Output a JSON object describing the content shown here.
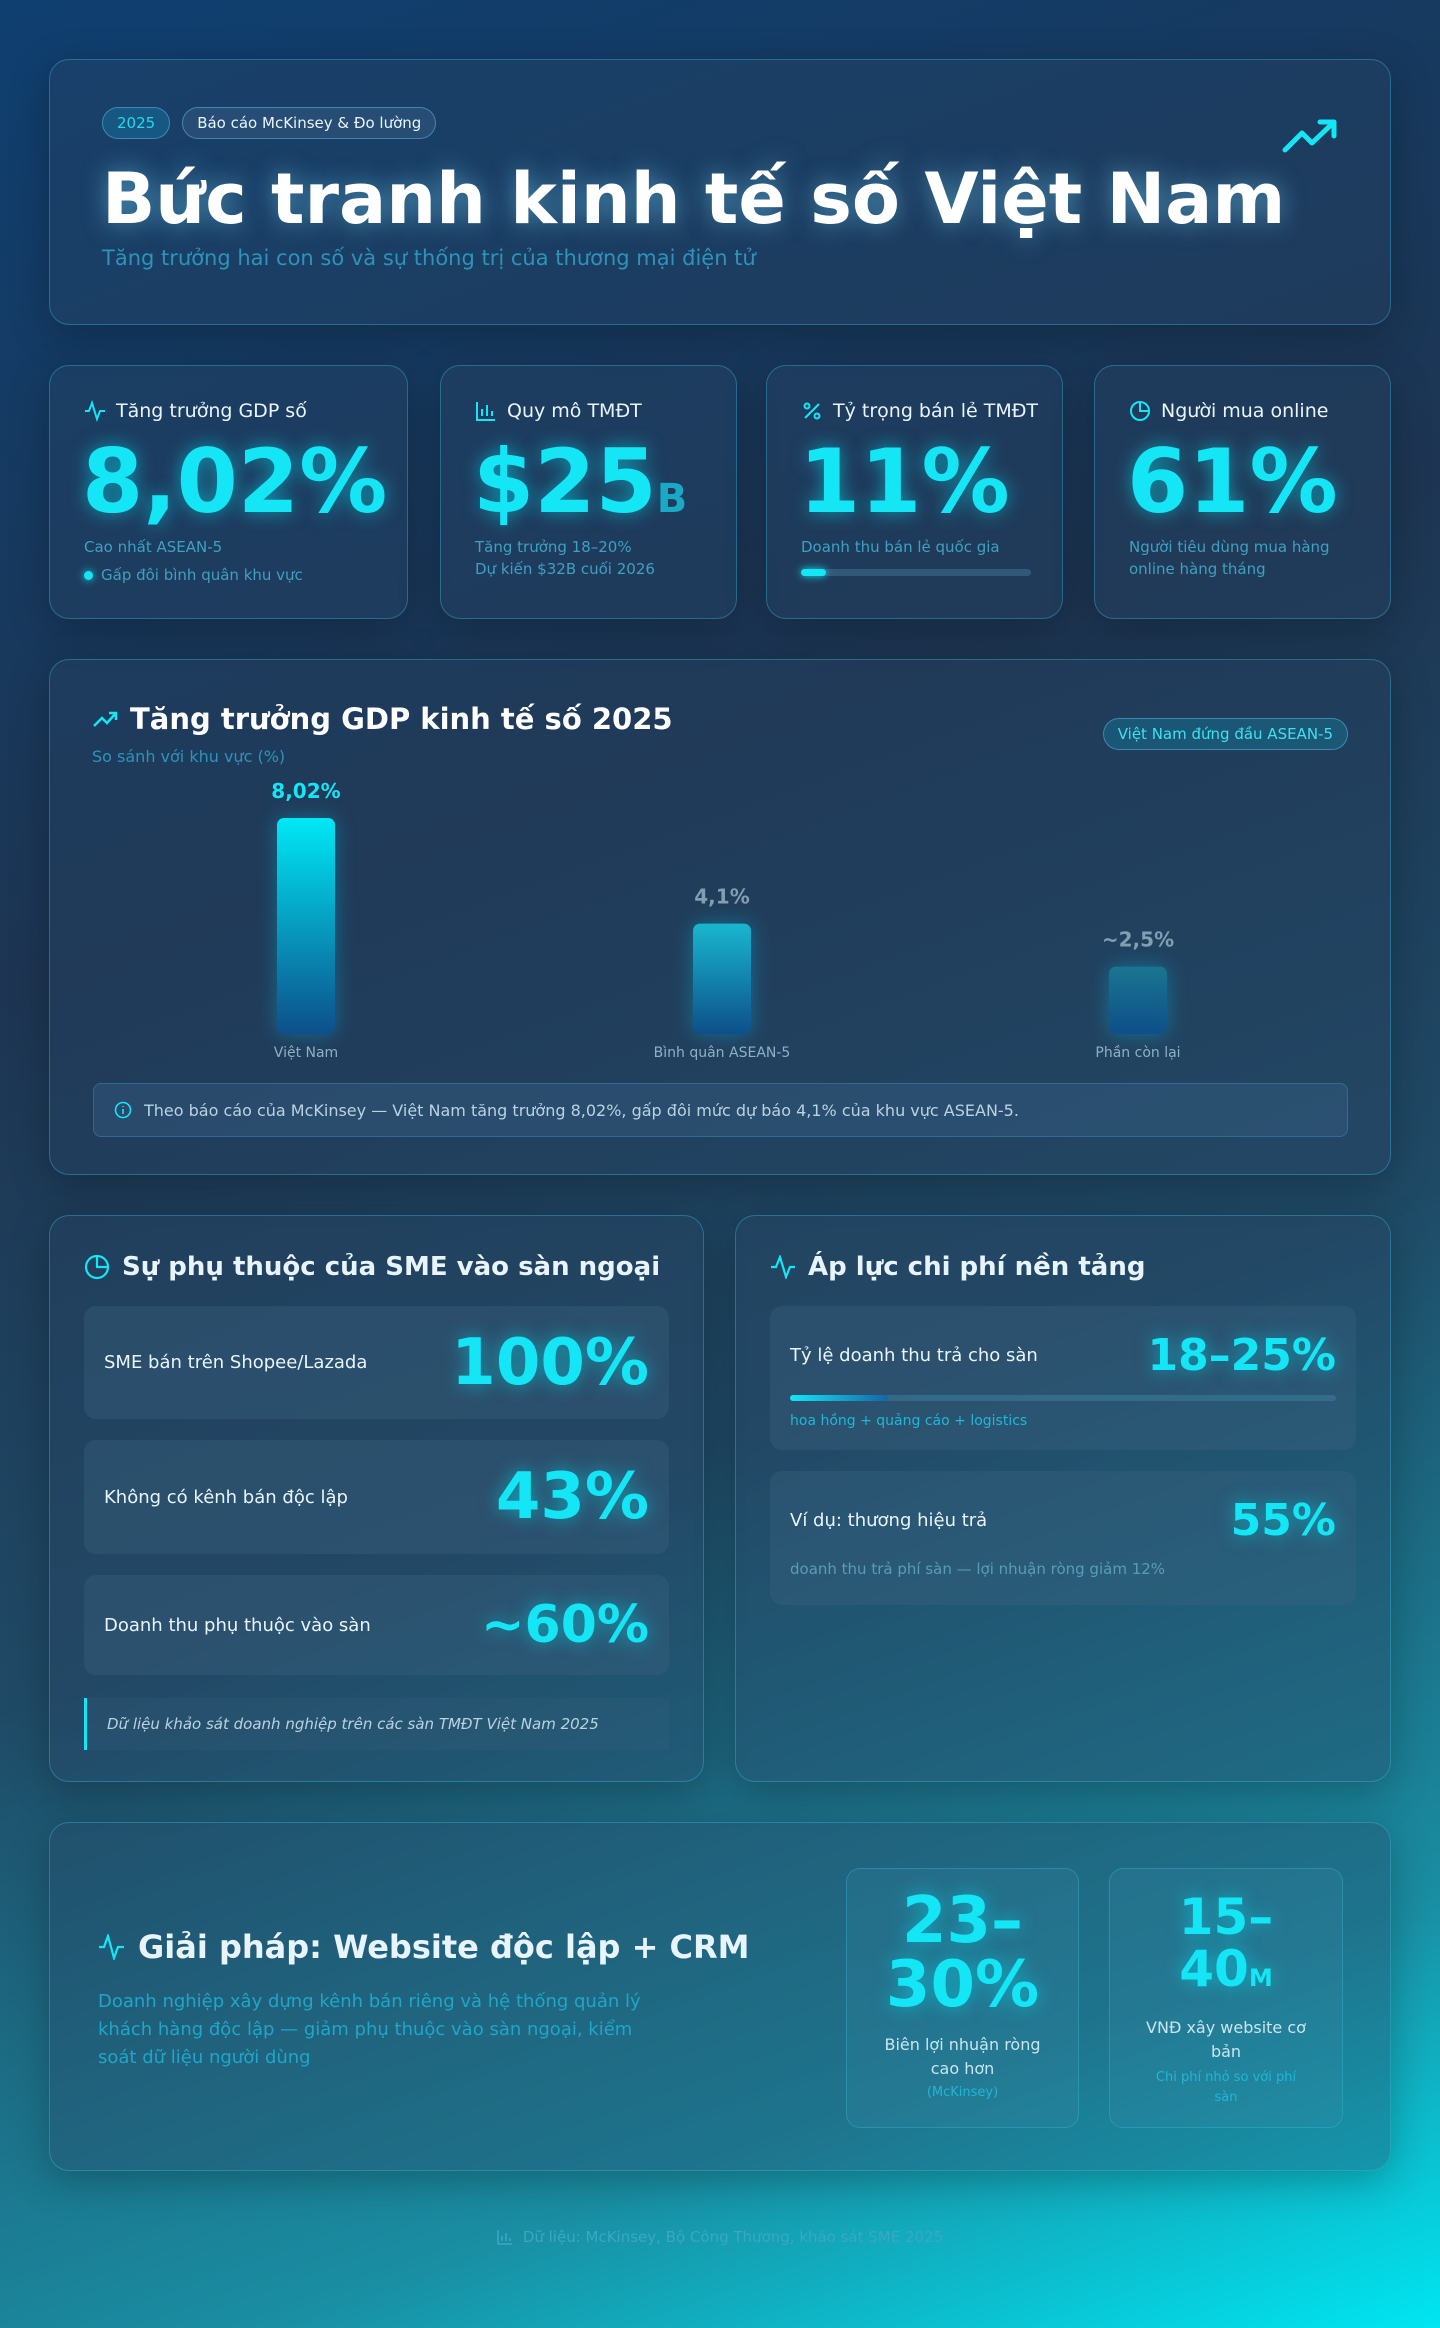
{
  "header": {
    "badge_year": "2025",
    "badge_source": "Báo cáo McKinsey & Đo lường",
    "title": "Bức tranh kinh tế số Việt Nam",
    "subtitle": "Tăng trưởng hai con số và sự thống trị của thương mại điện tử"
  },
  "kpis": [
    {
      "label": "Tăng trưởng GDP số",
      "value": "8,02%",
      "notes": [
        "Cao nhất ASEAN-5",
        "Gấp đôi bình quân khu vực"
      ]
    },
    {
      "label": "Quy mô TMĐT",
      "value": "$25",
      "unit": "B",
      "notes": [
        "Tăng trưởng 18–20%",
        "Dự kiến $32B cuối 2026"
      ]
    },
    {
      "label": "Tỷ trọng bán lẻ TMĐT",
      "value": 11,
      "value_label": "11%",
      "notes": [
        "Doanh thu bán lẻ quốc gia"
      ]
    },
    {
      "label": "Người mua online",
      "value": "61%",
      "notes": [
        "Người tiêu dùng mua hàng online hàng tháng"
      ]
    }
  ],
  "chart_data": {
    "type": "bar",
    "title": "Tăng trưởng GDP kinh tế số 2025",
    "subtitle": "So sánh với khu vực (%)",
    "badge": "Việt Nam đứng đầu ASEAN-5",
    "categories": [
      "Việt Nam",
      "Bình quân ASEAN-5",
      "Phần còn lại"
    ],
    "values": [
      8.02,
      4.1,
      2.5
    ],
    "value_labels": [
      "8,02%",
      "4,1%",
      "~2,5%"
    ],
    "colors": [
      "#00e8f5",
      "#19b6cf",
      "#1a7590"
    ],
    "note": "Theo báo cáo của McKinsey — Việt Nam tăng trưởng 8,02%, gấp đôi mức dự báo 4,1% của khu vực ASEAN-5."
  },
  "sme": {
    "title": "Sự phụ thuộc của SME vào sàn ngoại",
    "rows": [
      {
        "label": "SME bán trên Shopee/Lazada",
        "value": "100%"
      },
      {
        "label": "Không có kênh bán độc lập",
        "value": "43%"
      },
      {
        "label": "Doanh thu phụ thuộc vào sàn",
        "value": "~60%"
      }
    ],
    "note": "Dữ liệu khảo sát doanh nghiệp trên các sàn TMĐT Việt Nam 2025"
  },
  "costs": {
    "title": "Áp lực chi phí nền tảng",
    "items": [
      {
        "label": "Tỷ lệ doanh thu trả cho sàn",
        "range": [
          18,
          25
        ],
        "value_label": "18–25%",
        "note": "hoa hồng + quảng cáo + logistics"
      },
      {
        "label": "Ví dụ: thương hiệu trả",
        "value": "55%",
        "note": "doanh thu trả phí sàn — lợi nhuận ròng giảm 12%"
      }
    ]
  },
  "solution": {
    "title": "Giải pháp: Website độc lập + CRM",
    "text": "Doanh nghiệp xây dựng kênh bán riêng và hệ thống quản lý khách hàng độc lập — giảm phụ thuộc vào sàn ngoại, kiểm soát dữ liệu người dùng",
    "stats": [
      {
        "value": "23–30%",
        "label": "Biên lợi nhuận ròng cao hơn",
        "note": "(McKinsey)"
      },
      {
        "value": "15–40",
        "unit": "M",
        "label": "VNĐ xây website cơ bản",
        "note": "Chi phí nhỏ so với phí sàn"
      }
    ]
  },
  "footer": "Dữ liệu: McKinsey, Bộ Công Thương, khảo sát SME 2025"
}
